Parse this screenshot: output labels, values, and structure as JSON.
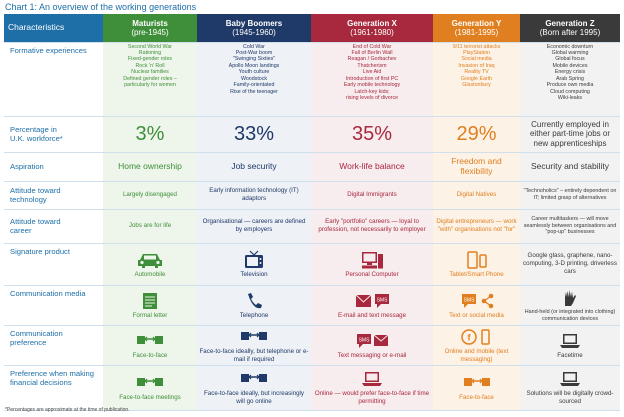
{
  "title": "Chart 1: An overview of the working generations",
  "header": {
    "characteristics": "Characteristics",
    "cols": [
      {
        "name": "Maturists",
        "years": "(pre-1945)"
      },
      {
        "name": "Baby Boomers",
        "years": "(1945-1960)"
      },
      {
        "name": "Generation X",
        "years": "(1961-1980)"
      },
      {
        "name": "Generation Y",
        "years": "(1981-1995)"
      },
      {
        "name": "Generation Z",
        "years": "(Born after 1995)"
      }
    ]
  },
  "rows": {
    "formative": {
      "label": "Formative experiences",
      "mat": [
        "Second World War",
        "Rationing",
        "Fixed-gender roles",
        "Rock 'n' Roll",
        "Nuclear families",
        "Defined gender roles –",
        "particularly for women"
      ],
      "bb": [
        "Cold War",
        "Post-War boom",
        "\"Swinging Sixties\"",
        "Apollo Moon landings",
        "Youth culture",
        "Woodstock",
        "Family-orientated",
        "Rise of the teenager"
      ],
      "gx": [
        "End of Cold War",
        "Fall of Berlin Wall",
        "Reagan / Gorbachev",
        "Thatcherism",
        "Live Aid",
        "Introduction of first PC",
        "Early mobile technology",
        "Latch-key kids;",
        "rising levels of divorce"
      ],
      "gy": [
        "9/11 terrorist attacks",
        "PlayStation",
        "Social media",
        "Invasion of Iraq",
        "Reality TV",
        "Google Earth",
        "Glastonbury"
      ],
      "gz": [
        "Economic downturn",
        "Global warming",
        "Global focus",
        "Mobile devices",
        "Energy crisis",
        "Arab Spring",
        "Produce own media",
        "Cloud computing",
        "Wiki-leaks"
      ]
    },
    "percent": {
      "label1": "Percentage in",
      "label2": "U.K. workforce*",
      "mat": "3%",
      "bb": "33%",
      "gx": "35%",
      "gy": "29%",
      "gz": "Currently employed in either part-time jobs or new apprenticeships"
    },
    "aspiration": {
      "label": "Aspiration",
      "mat": "Home ownership",
      "bb": "Job security",
      "gx": "Work-life balance",
      "gy": "Freedom and flexibility",
      "gz": "Security and stability"
    },
    "technology": {
      "label1": "Attitude toward",
      "label2": "technology",
      "mat": "Largely disengaged",
      "bb": "Early information technology (IT) adaptors",
      "gx": "Digital Immigrants",
      "gy": "Digital Natives",
      "gz": "\"Technoholics\" – entirely dependent on IT; limited grasp of alternatives"
    },
    "career": {
      "label1": "Attitude toward",
      "label2": "career",
      "mat": "Jobs are for life",
      "bb": "Organisational — careers are defined by employers",
      "gx": "Early \"portfolio\" careers — loyal to profession, not necessarily to employer",
      "gy": "Digital entrepreneurs — work \"with\" organisations not \"for\"",
      "gz": "Career multitaskers — will move seamlessly between organisations and \"pop-up\" businesses"
    },
    "product": {
      "label": "Signature product",
      "mat": "Automobile",
      "bb": "Television",
      "gx": "Personal Computer",
      "gy": "Tablet/Smart Phone",
      "gz": "Google glass, graphene, nano-computing, 3-D printing, driverless cars"
    },
    "media": {
      "label": "Communication media",
      "mat": "Formal letter",
      "bb": "Telephone",
      "gx": "E-mail and text message",
      "gy": "Text or social media",
      "gz": "Hand-held (or integrated into clothing) communication devices",
      "sms": "SMS"
    },
    "preference": {
      "label1": "Communication",
      "label2": "preference",
      "mat": "Face-to-face",
      "bb": "Face-to-face ideally, but telephone or e-mail if required",
      "gx": "Text messaging or e-mail",
      "gy": "Online and mobile (text messaging)",
      "gz": "Facetime",
      "sms": "SMS"
    },
    "financial": {
      "label1": "Preference when making",
      "label2": "financial decisions",
      "mat": "Face-to-face meetings",
      "bb": "Face-to-face ideally, but increasingly will go online",
      "gx": "Online — would prefer face-to-face if time permitting",
      "gy": "Face-to-face",
      "gz": "Solutions will be digitally crowd-sourced"
    }
  },
  "footnote": "*Percentages are approximate at the time of publication.",
  "colors": {
    "mat": "#3f8f3a",
    "bb": "#1f3a68",
    "gx": "#a8283d",
    "gy": "#e07f1f",
    "gz": "#3a3a3a",
    "label": "#1e6fa8"
  },
  "icons": [
    "car-icon",
    "tv-icon",
    "computer-icon",
    "smartphone-icon",
    "tablet-icon",
    "letter-icon",
    "telephone-icon",
    "envelope-icon",
    "sms-bubble-icon",
    "share-icon",
    "hand-icon",
    "handshake-icon",
    "facebook-icon",
    "laptop-icon"
  ]
}
